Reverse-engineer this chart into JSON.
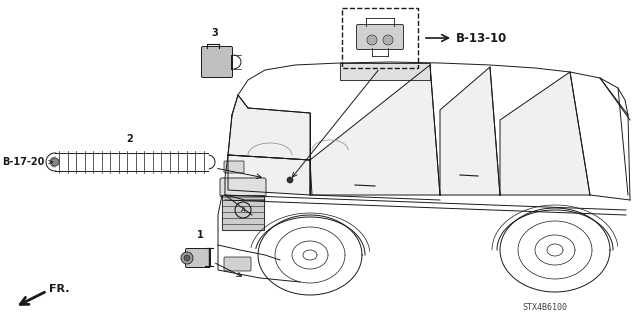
{
  "background_color": "#ffffff",
  "part_code": "STX4B6100",
  "fig_width": 6.4,
  "fig_height": 3.19,
  "dpi": 100,
  "labels": {
    "b1310": "B-13-10",
    "b1720": "B-17-20",
    "fr": "FR.",
    "num1": "1",
    "num2": "2",
    "num3": "3"
  },
  "colors": {
    "line": "#1a1a1a",
    "fill_light": "#e8e8e8",
    "fill_mid": "#cccccc",
    "fill_dark": "#999999",
    "bg": "#ffffff"
  }
}
